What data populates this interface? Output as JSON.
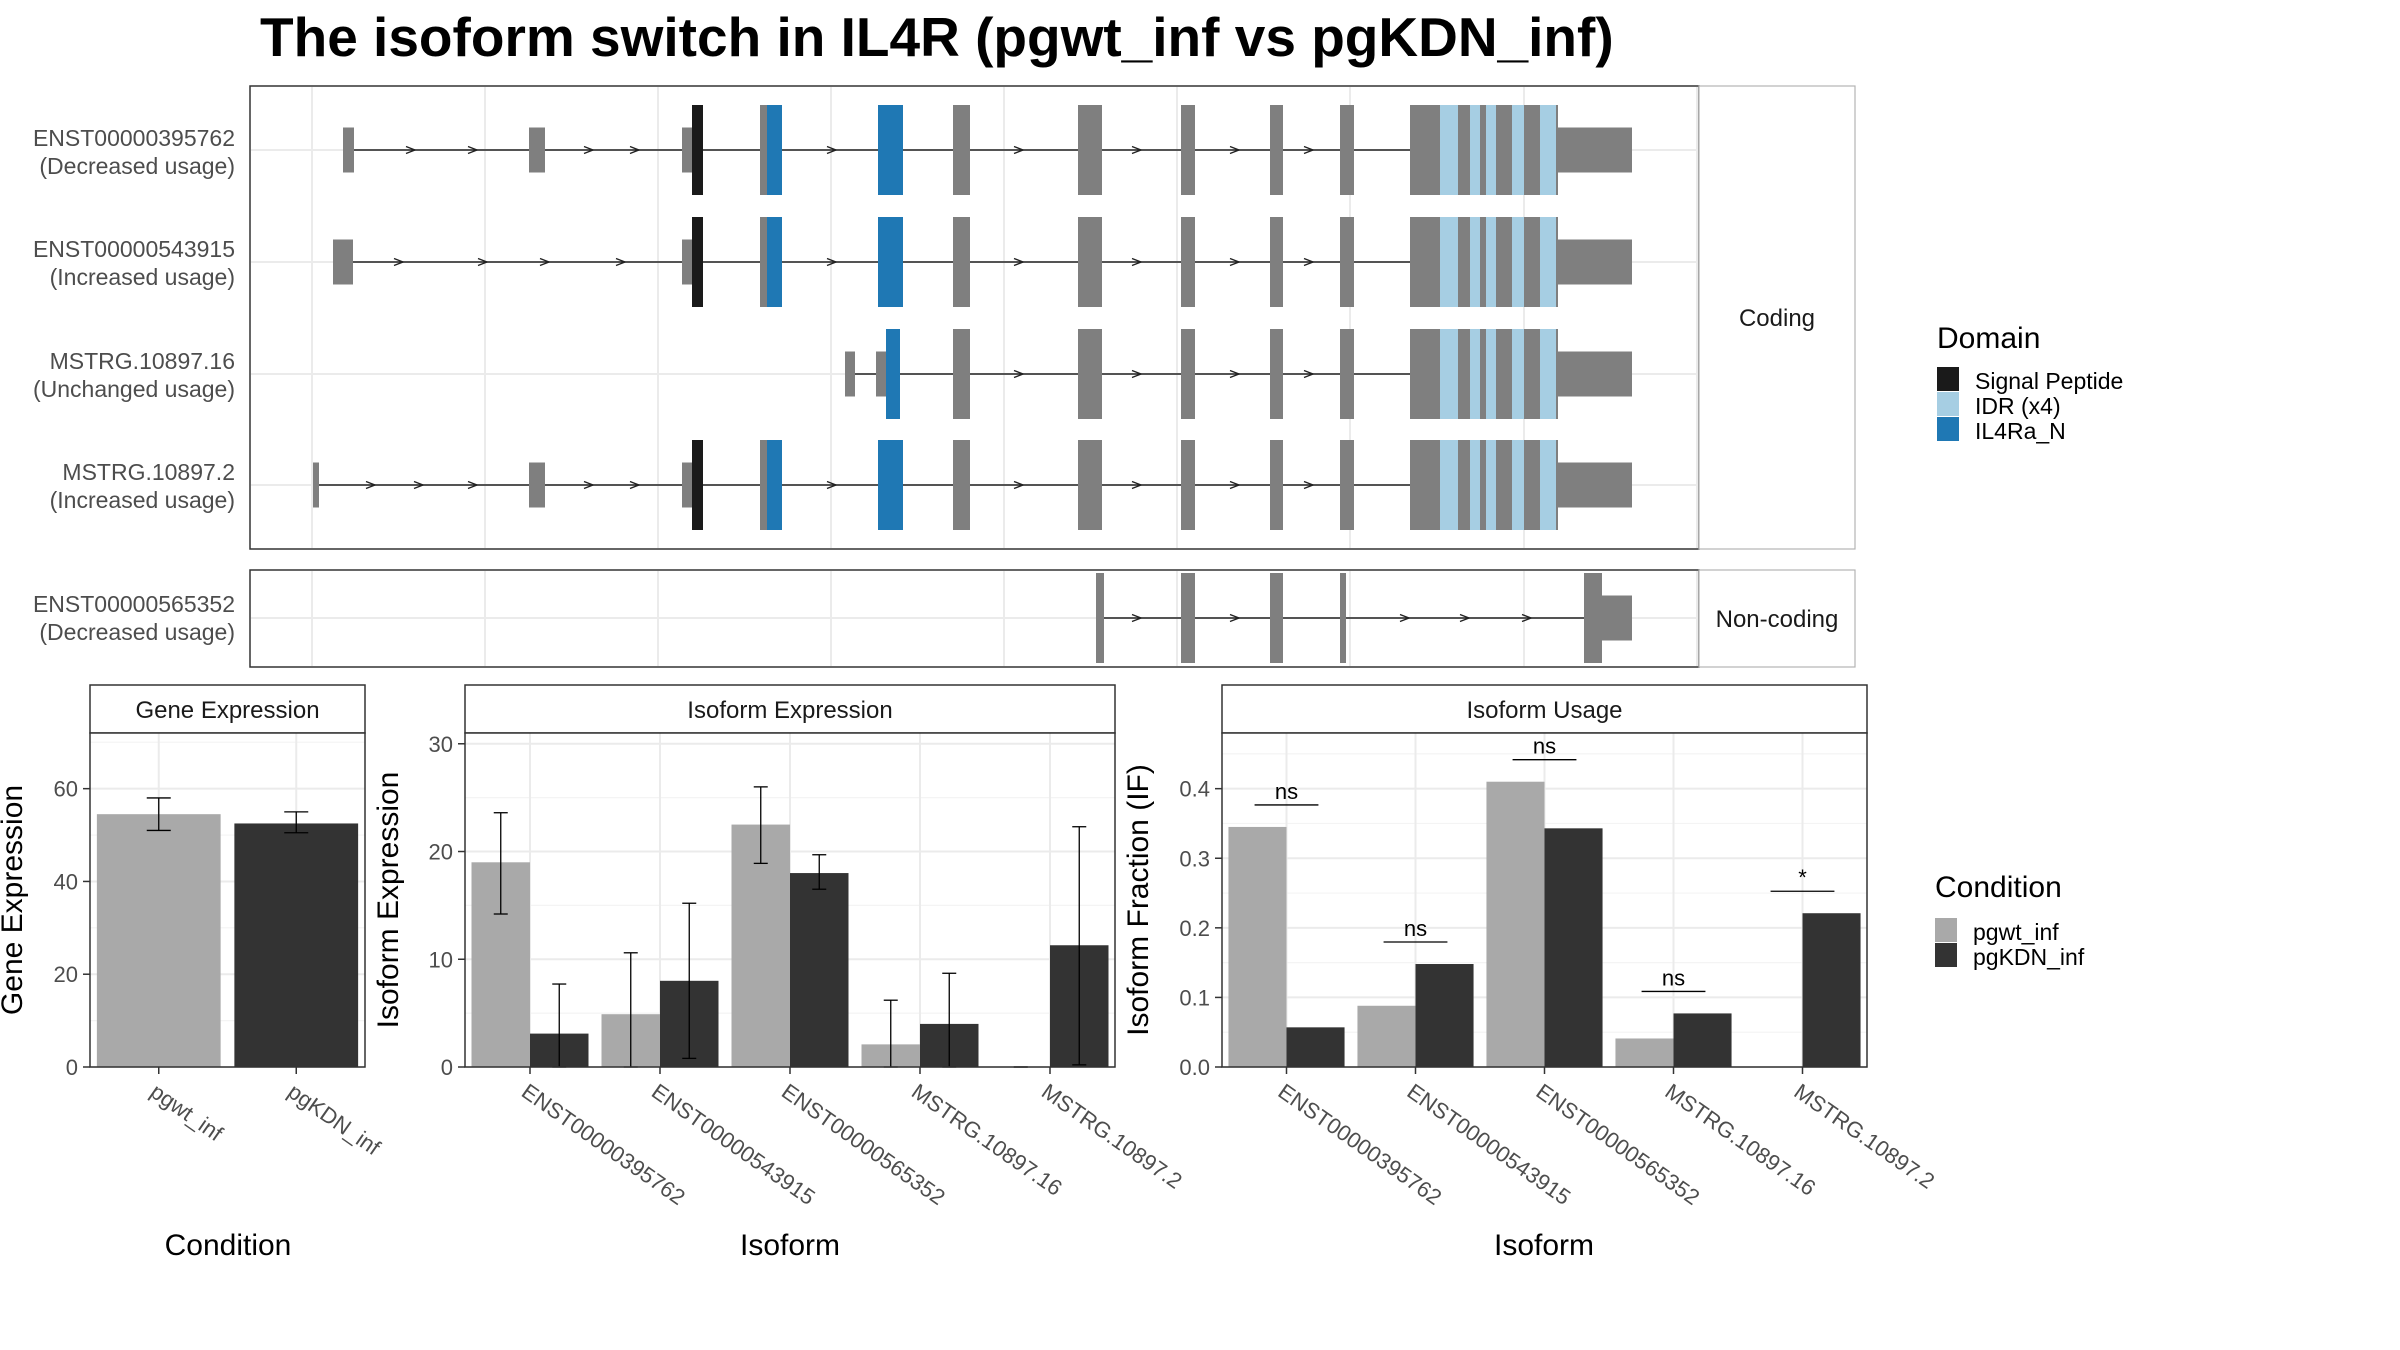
{
  "title": "The isoform switch in IL4R (pgwt_inf vs pgKDN_inf)",
  "colors": {
    "pgwt_inf": "#a9a9a9",
    "pgKDN_inf": "#333333",
    "signal_peptide": "#1a1a1a",
    "idr": "#a6cee3",
    "il4ra_n": "#1f78b4",
    "exon": "#7f7f7f",
    "grid": "#ebebeb",
    "border": "#333333",
    "strip_bg": "#ffffff"
  },
  "structure": {
    "strip_coding": "Coding",
    "strip_noncoding": "Non-coding",
    "transcripts": [
      {
        "id": "ENST00000395762",
        "usage": "(Decreased usage)"
      },
      {
        "id": "ENST00000543915",
        "usage": "(Increased usage)"
      },
      {
        "id": "MSTRG.10897.16",
        "usage": "(Unchanged usage)"
      },
      {
        "id": "MSTRG.10897.2",
        "usage": "(Increased usage)"
      },
      {
        "id": "ENST00000565352",
        "usage": "(Decreased usage)"
      }
    ]
  },
  "legend_domain": {
    "title": "Domain",
    "items": [
      {
        "label": "Signal Peptide",
        "color": "#1a1a1a"
      },
      {
        "label": "IDR (x4)",
        "color": "#a6cee3"
      },
      {
        "label": "IL4Ra_N",
        "color": "#1f78b4"
      }
    ]
  },
  "legend_condition": {
    "title": "Condition",
    "items": [
      {
        "label": "pgwt_inf",
        "color": "#a9a9a9"
      },
      {
        "label": "pgKDN_inf",
        "color": "#333333"
      }
    ]
  },
  "chart_data": [
    {
      "type": "bar",
      "title": "Gene Expression",
      "xlabel": "Condition",
      "ylabel": "Gene Expression",
      "ylim": [
        0,
        72
      ],
      "yticks": [
        0,
        20,
        40,
        60
      ],
      "categories": [
        "pgwt_inf",
        "pgKDN_inf"
      ],
      "values": [
        54.5,
        52.5
      ],
      "errors": [
        [
          51,
          58
        ],
        [
          50.5,
          55
        ]
      ]
    },
    {
      "type": "bar",
      "title": "Isoform Expression",
      "xlabel": "Isoform",
      "ylabel": "Isoform Expression",
      "ylim": [
        0,
        31
      ],
      "yticks": [
        0,
        10,
        20,
        30
      ],
      "categories": [
        "ENST00000395762",
        "ENST00000543915",
        "ENST00000565352",
        "MSTRG.10897.16",
        "MSTRG.10897.2"
      ],
      "series": [
        {
          "name": "pgwt_inf",
          "values": [
            19,
            4.9,
            22.5,
            2.1,
            0
          ],
          "errors": [
            [
              14.2,
              23.6
            ],
            [
              0,
              10.6
            ],
            [
              18.9,
              26
            ],
            [
              0,
              6.2
            ],
            [
              0,
              0
            ]
          ]
        },
        {
          "name": "pgKDN_inf",
          "values": [
            3.1,
            8,
            18,
            4,
            11.3
          ],
          "errors": [
            [
              0,
              7.7
            ],
            [
              0.8,
              15.2
            ],
            [
              16.5,
              19.7
            ],
            [
              0,
              8.7
            ],
            [
              0.2,
              22.3
            ]
          ]
        }
      ]
    },
    {
      "type": "bar",
      "title": "Isoform Usage",
      "xlabel": "Isoform",
      "ylabel": "Isoform Fraction (IF)",
      "ylim": [
        0,
        0.48
      ],
      "yticks": [
        "0.0",
        "0.1",
        "0.2",
        "0.3",
        "0.4"
      ],
      "categories": [
        "ENST00000395762",
        "ENST00000543915",
        "ENST00000565352",
        "MSTRG.10897.16",
        "MSTRG.10897.2"
      ],
      "series": [
        {
          "name": "pgwt_inf",
          "values": [
            0.345,
            0.088,
            0.41,
            0.041,
            0
          ]
        },
        {
          "name": "pgKDN_inf",
          "values": [
            0.057,
            0.148,
            0.343,
            0.077,
            0.221
          ]
        }
      ],
      "significance": [
        "ns",
        "ns",
        "ns",
        "ns",
        "*"
      ]
    }
  ]
}
